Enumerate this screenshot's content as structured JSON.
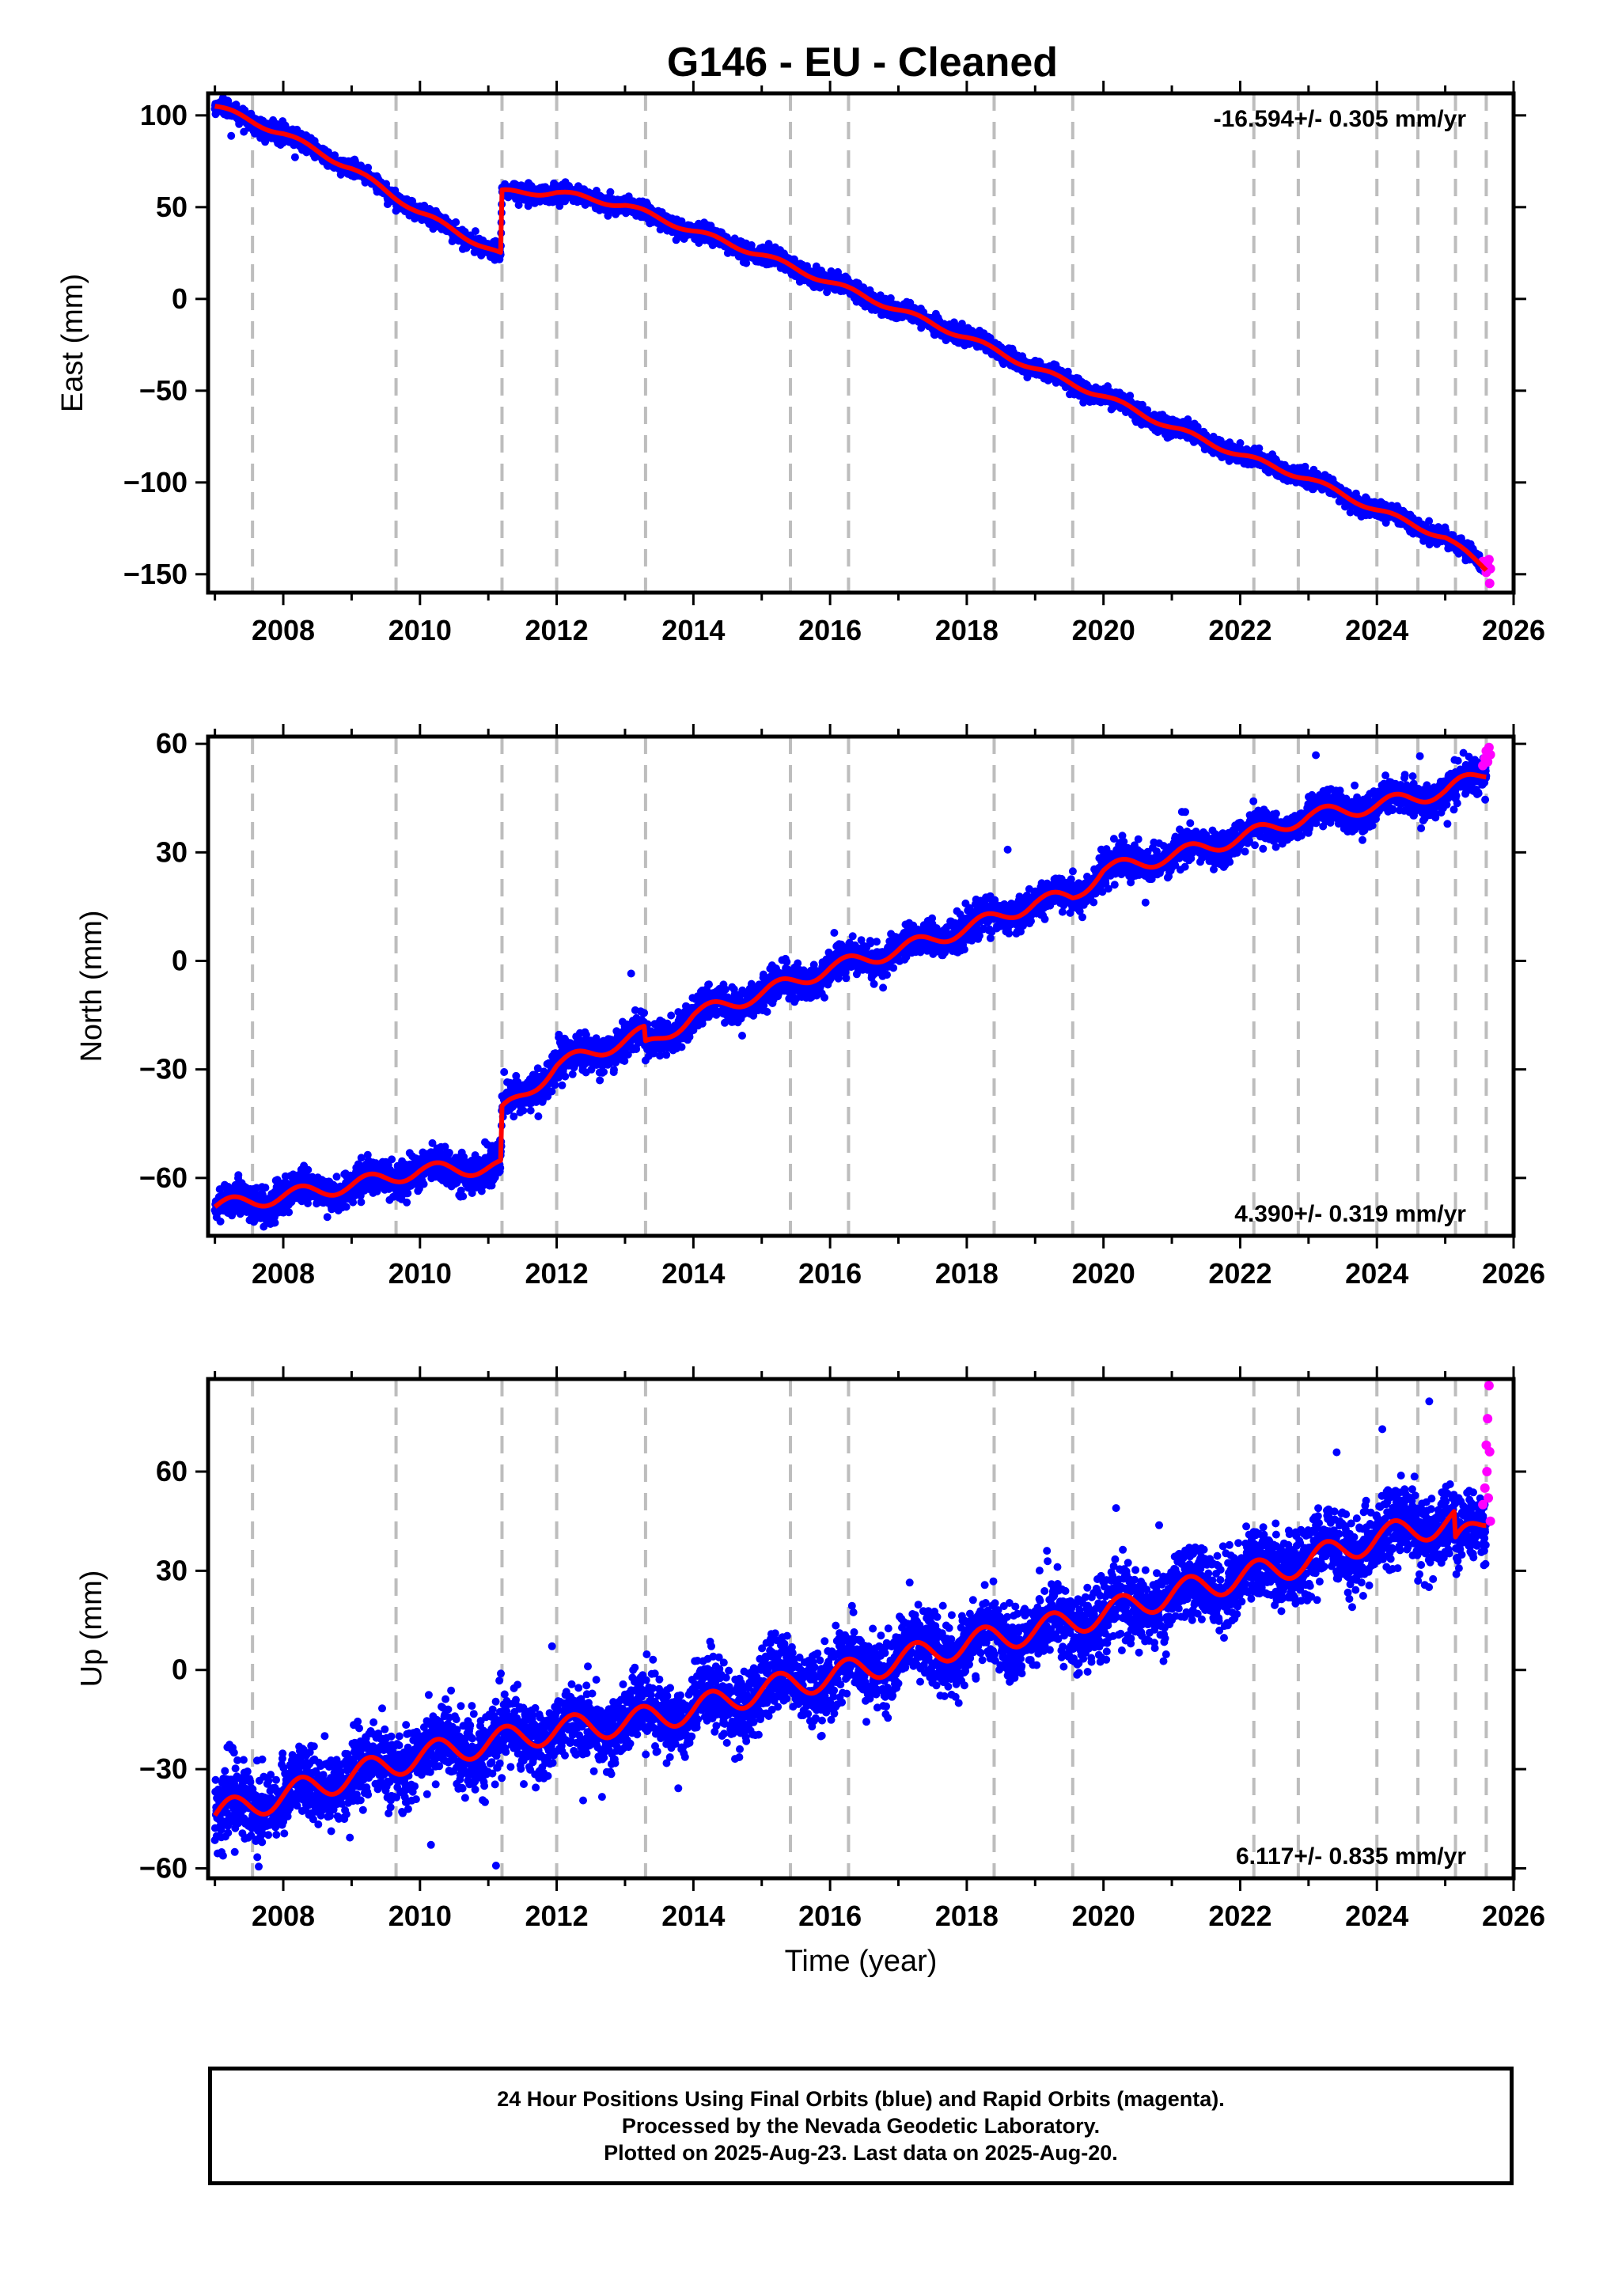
{
  "title": "G146  - EU - Cleaned",
  "chart_data": [
    {
      "type": "scatter",
      "component": "east",
      "ylabel": "East (mm)",
      "ylim": [
        -160,
        112
      ],
      "yticks": [
        -150,
        -100,
        -50,
        0,
        50,
        100
      ],
      "xlim": [
        2006.9,
        2026.0
      ],
      "xticks": [
        2008,
        2010,
        2012,
        2014,
        2016,
        2018,
        2020,
        2022,
        2024,
        2026
      ],
      "rate_label": "-16.594+/- 0.305 mm/yr",
      "rate_position": "top-right",
      "grid": false,
      "equipment_change_lines": [
        2007.55,
        2009.65,
        2011.2,
        2012.0,
        2013.3,
        2015.42,
        2016.27,
        2018.4,
        2019.55,
        2022.2,
        2022.85,
        2024.0,
        2024.6,
        2025.15,
        2025.6
      ],
      "trend_model": {
        "breaks": [
          2011.2
        ],
        "knots": [
          [
            2007.0,
            105
          ],
          [
            2008.0,
            90
          ],
          [
            2009.0,
            71
          ],
          [
            2010.0,
            47
          ],
          [
            2011.18,
            24
          ],
          [
            2011.2,
            58
          ],
          [
            2012.0,
            58
          ],
          [
            2013.0,
            51
          ],
          [
            2014.0,
            37
          ],
          [
            2015.0,
            24
          ],
          [
            2016.0,
            9
          ],
          [
            2017.0,
            -6
          ],
          [
            2018.0,
            -21
          ],
          [
            2019.0,
            -38
          ],
          [
            2020.0,
            -53
          ],
          [
            2021.0,
            -70
          ],
          [
            2022.0,
            -85
          ],
          [
            2023.0,
            -98
          ],
          [
            2024.0,
            -115
          ],
          [
            2025.0,
            -130
          ],
          [
            2025.6,
            -147
          ]
        ],
        "seasonal_amplitude": 1.5,
        "scatter_sd": 2.2
      },
      "final_orbits_color": "#0000ff",
      "rapid_orbits_color": "#ff00ff",
      "model_color": "#ff0000",
      "rapid_orbits_points": [
        [
          2025.55,
          -143
        ],
        [
          2025.58,
          -146
        ],
        [
          2025.6,
          -149
        ],
        [
          2025.62,
          -145
        ],
        [
          2025.64,
          -142
        ],
        [
          2025.65,
          -155
        ],
        [
          2025.66,
          -147
        ]
      ]
    },
    {
      "type": "scatter",
      "component": "north",
      "ylabel": "North (mm)",
      "ylim": [
        -76,
        62
      ],
      "yticks": [
        -60,
        -30,
        0,
        30,
        60
      ],
      "xlim": [
        2006.9,
        2026.0
      ],
      "xticks": [
        2008,
        2010,
        2012,
        2014,
        2016,
        2018,
        2020,
        2022,
        2024,
        2026
      ],
      "rate_label": "4.390+/- 0.319 mm/yr",
      "rate_position": "bottom-right",
      "grid": false,
      "equipment_change_lines": [
        2007.55,
        2009.65,
        2011.2,
        2012.0,
        2013.3,
        2015.42,
        2016.27,
        2018.4,
        2019.55,
        2022.2,
        2022.85,
        2024.0,
        2024.6,
        2025.15,
        2025.6
      ],
      "trend_model": {
        "breaks": [
          2011.2,
          2013.3
        ],
        "knots": [
          [
            2007.0,
            -68
          ],
          [
            2008.0,
            -65
          ],
          [
            2009.0,
            -62
          ],
          [
            2010.0,
            -58
          ],
          [
            2011.18,
            -57
          ],
          [
            2011.2,
            -42
          ],
          [
            2012.0,
            -29
          ],
          [
            2013.28,
            -20
          ],
          [
            2013.3,
            -24
          ],
          [
            2014.0,
            -15
          ],
          [
            2015.0,
            -9
          ],
          [
            2016.0,
            -2
          ],
          [
            2017.0,
            3
          ],
          [
            2018.0,
            9
          ],
          [
            2019.0,
            16
          ],
          [
            2019.55,
            18
          ],
          [
            2020.0,
            25
          ],
          [
            2021.0,
            29
          ],
          [
            2022.0,
            34
          ],
          [
            2023.0,
            40
          ],
          [
            2024.0,
            43
          ],
          [
            2025.0,
            47
          ],
          [
            2025.6,
            52
          ]
        ],
        "seasonal_amplitude": 2.0,
        "scatter_sd": 2.3
      },
      "final_orbits_color": "#0000ff",
      "rapid_orbits_color": "#ff00ff",
      "model_color": "#ff0000",
      "rapid_orbits_points": [
        [
          2025.55,
          54
        ],
        [
          2025.58,
          56
        ],
        [
          2025.6,
          58
        ],
        [
          2025.62,
          55
        ],
        [
          2025.64,
          59
        ],
        [
          2025.66,
          57
        ]
      ]
    },
    {
      "type": "scatter",
      "component": "up",
      "ylabel": "Up (mm)",
      "ylim": [
        -63,
        88
      ],
      "yticks": [
        -60,
        -30,
        0,
        30,
        60
      ],
      "xlim": [
        2006.9,
        2026.0
      ],
      "xticks": [
        2008,
        2010,
        2012,
        2014,
        2016,
        2018,
        2020,
        2022,
        2024,
        2026
      ],
      "xlabel": "Time (year)",
      "rate_label": "6.117+/- 0.835 mm/yr",
      "rate_position": "bottom-right",
      "grid": false,
      "equipment_change_lines": [
        2007.55,
        2009.65,
        2011.2,
        2012.0,
        2013.3,
        2015.42,
        2016.27,
        2018.4,
        2019.55,
        2022.2,
        2022.85,
        2024.0,
        2024.6,
        2025.15,
        2025.6
      ],
      "trend_model": {
        "breaks": [
          2025.15
        ],
        "knots": [
          [
            2007.0,
            -44
          ],
          [
            2008.0,
            -38
          ],
          [
            2009.0,
            -32
          ],
          [
            2010.0,
            -26
          ],
          [
            2011.0,
            -22
          ],
          [
            2012.0,
            -18
          ],
          [
            2013.0,
            -16
          ],
          [
            2014.0,
            -12
          ],
          [
            2015.0,
            -6
          ],
          [
            2016.0,
            -2
          ],
          [
            2017.0,
            3
          ],
          [
            2018.0,
            8
          ],
          [
            2019.0,
            12
          ],
          [
            2020.0,
            17
          ],
          [
            2021.0,
            23
          ],
          [
            2022.0,
            28
          ],
          [
            2023.0,
            33
          ],
          [
            2024.0,
            40
          ],
          [
            2025.13,
            45
          ],
          [
            2025.15,
            37
          ],
          [
            2025.6,
            46
          ]
        ],
        "seasonal_amplitude": 4.0,
        "scatter_sd": 5.5
      },
      "final_orbits_color": "#0000ff",
      "rapid_orbits_color": "#ff00ff",
      "model_color": "#ff0000",
      "rapid_orbits_points": [
        [
          2025.55,
          50
        ],
        [
          2025.58,
          55
        ],
        [
          2025.6,
          68
        ],
        [
          2025.62,
          76
        ],
        [
          2025.64,
          86
        ],
        [
          2025.65,
          66
        ],
        [
          2025.66,
          45
        ],
        [
          2025.63,
          52
        ],
        [
          2025.61,
          60
        ]
      ]
    }
  ],
  "footer": {
    "line1": "24 Hour Positions Using Final Orbits (blue) and Rapid Orbits (magenta).",
    "line2": "Processed by the Nevada Geodetic Laboratory.",
    "line3": "Plotted on 2025-Aug-23. Last data on 2025-Aug-20."
  }
}
